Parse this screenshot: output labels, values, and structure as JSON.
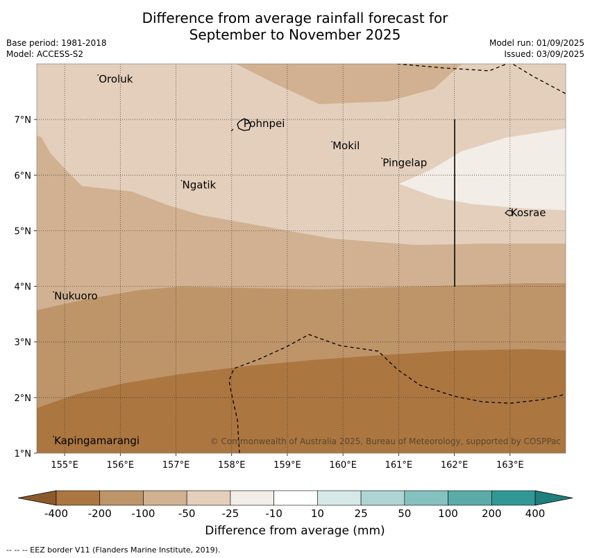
{
  "title_line1": "Difference from average rainfall forecast for",
  "title_line2": "September to November 2025",
  "meta": {
    "base_period": "Base period: 1981-2018",
    "model": "Model: ACCESS-S2",
    "model_run": "Model run: 01/09/2025",
    "issued": "Issued: 03/09/2025"
  },
  "map": {
    "lon_range": [
      154.5,
      164.0
    ],
    "lat_range": [
      1.0,
      8.0
    ],
    "lon_ticks": [
      "155°E",
      "156°E",
      "157°E",
      "158°E",
      "159°E",
      "160°E",
      "161°E",
      "162°E",
      "163°E"
    ],
    "lat_ticks": [
      "1°N",
      "2°N",
      "3°N",
      "4°N",
      "5°N",
      "6°N",
      "7°N"
    ],
    "places": [
      {
        "name": "Oroluk",
        "lon": 155.6,
        "lat": 7.7
      },
      {
        "name": "Pohnpei",
        "lon": 158.2,
        "lat": 6.9
      },
      {
        "name": "Mokil",
        "lon": 159.8,
        "lat": 6.5
      },
      {
        "name": "Pingelap",
        "lon": 160.7,
        "lat": 6.2
      },
      {
        "name": "Ngatik",
        "lon": 157.1,
        "lat": 5.8
      },
      {
        "name": "Kosrae",
        "lon": 163.0,
        "lat": 5.3
      },
      {
        "name": "Nukuoro",
        "lon": 154.8,
        "lat": 3.8
      },
      {
        "name": "Kapingamarangi",
        "lon": 154.8,
        "lat": 1.2
      }
    ],
    "copyright": "© Commonwealth of Australia 2025, Bureau of Meteorology, supported by COSPPac"
  },
  "colorbar": {
    "labels": [
      "-400",
      "-200",
      "-100",
      "-50",
      "-25",
      "-10",
      "10",
      "25",
      "50",
      "100",
      "200",
      "400"
    ],
    "colors": [
      "#ab7640",
      "#be9469",
      "#d1b191",
      "#e3cfbc",
      "#f3ede7",
      "#ffffff",
      "#d6e9e8",
      "#aed5d4",
      "#85c1be",
      "#5baba9",
      "#329896"
    ],
    "under_color": "#8b5a2b",
    "over_color": "#1f7f7c",
    "title": "Difference from average (mm)"
  },
  "footnote": "--  --  -- EEZ border V11 (Flanders Marine Institute, 2019)."
}
